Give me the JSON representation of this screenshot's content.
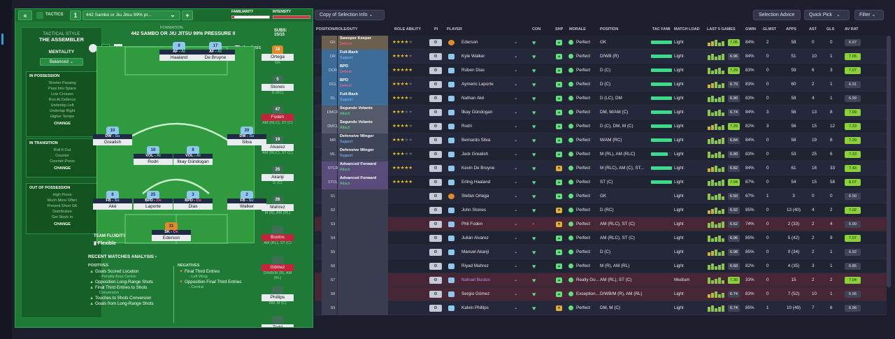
{
  "tactics": {
    "back": "«",
    "tactics_label": "TACTICS",
    "slot": "1",
    "name": "442 Sambo or Jiu Jitsu 99% pr...",
    "add": "+",
    "familiarity": "FAMILIARITY",
    "intensity": "INTENSITY",
    "style_label": "TACTICAL STYLE",
    "style": "THE ASSEMBLER",
    "mentality_label": "MENTALITY",
    "mentality": "Balanced",
    "in_possession": {
      "title": "IN POSSESSION",
      "items": [
        "Shorter Passing",
        "Pass Into Space",
        "Low Crosses",
        "Run At Defence",
        "Underlap Left",
        "Underlap Right",
        "Higher Tempo"
      ],
      "change": "CHANGE"
    },
    "in_transition": {
      "title": "IN TRANSITION",
      "items": [
        "Roll It Out",
        "Counter",
        "Counter-Press"
      ],
      "change": "CHANGE"
    },
    "out_of_possession": {
      "title": "OUT OF POSSESSION",
      "items": [
        "High Press",
        "Much More Often",
        "Prevent Short GK",
        "Distribution",
        "Get Stuck In"
      ],
      "change": "CHANGE"
    },
    "formation_label": "FORMATION",
    "formation_name": "442 SAMBO OR JIU JITSU 99% PRESSURE II",
    "analysis": "Analysis",
    "subs_label": "SUBS:",
    "subs_count": "15/15",
    "fluidity_label": "TEAM FLUIDITY",
    "fluidity": "Flexible"
  },
  "pitch_players": [
    {
      "num": "9",
      "role": "AF",
      "duty": "At",
      "name": "Haaland"
    },
    {
      "num": "17",
      "role": "AF",
      "duty": "At",
      "name": "De Bruyne"
    },
    {
      "num": "10",
      "role": "DW",
      "duty": "Su",
      "name": "Grealish"
    },
    {
      "num": "16",
      "role": "VOL",
      "duty": "At",
      "name": "Rodri"
    },
    {
      "num": "8",
      "role": "VOL",
      "duty": "At",
      "name": "İlkay Gündogan"
    },
    {
      "num": "20",
      "role": "DW",
      "duty": "Su",
      "name": "Silva"
    },
    {
      "num": "6",
      "role": "FB",
      "duty": "Su",
      "name": "Aké"
    },
    {
      "num": "25",
      "role": "BPD",
      "duty": "De",
      "name": "Laporte"
    },
    {
      "num": "3",
      "role": "BPD",
      "duty": "De",
      "name": "Dias"
    },
    {
      "num": "2",
      "role": "FB",
      "duty": "Su",
      "name": "Walker"
    },
    {
      "num": "31",
      "role": "SK",
      "duty": "De",
      "name": "Ederson"
    }
  ],
  "subs": [
    {
      "num": "18",
      "name": "Ortega",
      "pos": "GK"
    },
    {
      "num": "5",
      "name": "Stones",
      "pos": "D (RC)"
    },
    {
      "num": "47",
      "name": "Foden",
      "pos": "AM (RLC), ST (C)"
    },
    {
      "num": "19",
      "name": "Alvarez",
      "pos": "AM (RLC), ST (C)"
    },
    {
      "num": "25",
      "name": "Akanji",
      "pos": "D (C)"
    },
    {
      "num": "26",
      "name": "Mahrez",
      "pos": "M (R), AM (RL)"
    },
    {
      "num": "",
      "name": "Bustos",
      "pos": "AM (RL), ST (C)"
    },
    {
      "num": "",
      "name": "Gómez",
      "pos": "D/WB/M (R), AM (RL)"
    },
    {
      "num": "",
      "name": "Phillips",
      "pos": "DM, M (C)"
    },
    {
      "num": "",
      "name": "Tedd",
      "pos": ""
    }
  ],
  "recent": {
    "title": "RECENT MATCHES ANALYSIS",
    "positives_label": "POSITIVES",
    "negatives_label": "NEGATIVES",
    "positives": [
      "Goals Scored Location",
      "Opposition Long-Range Shots",
      "Final Third Entries to Shots",
      "Touches to Shots Conversion",
      "Goals from Long-Range Shots"
    ],
    "positive_subs": [
      "- Penalty Area Centre",
      "",
      "Conversion",
      "",
      ""
    ],
    "negatives": [
      "Final Third Entries",
      "Opposition Final Third Entries"
    ],
    "negative_subs": [
      "- Left Wing",
      "- Central"
    ]
  },
  "squad_toolbar": {
    "view": "Copy of Selection Info",
    "selection_advice": "Selection Advice",
    "quick_pick": "Quick Pick",
    "filter": "Filter"
  },
  "columns": {
    "pos": "POSITION/ROLE/DUTY",
    "rating": "ROLE ABILITY",
    "pi": "PI",
    "player": "PLAYER",
    "con": "CON",
    "shp": "SHP",
    "morale": "MORALE",
    "position": "POSITION",
    "tac": "TAC FAMI",
    "load": "MATCH LOAD",
    "last5": "LAST 5 GAMES",
    "gwin": "GWIN",
    "glmst": "GLMST",
    "apps": "APPS",
    "ast": "AST",
    "gls": "GLS",
    "avrat": "AV RAT"
  },
  "rows": [
    {
      "pos": "GK",
      "role": "Sweeper Keeper",
      "duty": "Defend",
      "stars": 4,
      "player": "Ederson",
      "morale": "Perfect",
      "position": "GK",
      "load": "Light",
      "rating": "7.05",
      "gwin": "84%",
      "glmst": "2",
      "apps": "58",
      "ast": "0",
      "gls": "0",
      "avrat": "6.97"
    },
    {
      "pos": "DR",
      "role": "Full-Back",
      "duty": "Support",
      "stars": 4,
      "player": "Kyle Walker",
      "morale": "Perfect",
      "position": "D/WB (R)",
      "load": "Light",
      "rating": "6.96",
      "gwin": "84%",
      "glmst": "0",
      "apps": "51",
      "ast": "10",
      "gls": "1",
      "avrat": "7.05"
    },
    {
      "pos": "DCR",
      "role": "BPD",
      "duty": "Defend",
      "stars": 4.5,
      "player": "Rúben Dias",
      "morale": "Perfect",
      "position": "D (C)",
      "load": "Light",
      "rating": "7.29",
      "gwin": "83%",
      "glmst": "0",
      "apps": "59",
      "ast": "6",
      "gls": "3",
      "avrat": "7.07"
    },
    {
      "pos": "DCL",
      "role": "BPD",
      "duty": "Defend",
      "stars": 4,
      "player": "Aymeric Laporte",
      "morale": "Perfect",
      "position": "D (C)",
      "load": "Light",
      "rating": "6.70",
      "gwin": "83%",
      "glmst": "0",
      "apps": "60",
      "ast": "2",
      "gls": "1",
      "avrat": "6.91"
    },
    {
      "pos": "DL",
      "role": "Full-Back",
      "duty": "Support",
      "stars": 4,
      "player": "Nathan Aké",
      "morale": "Perfect",
      "position": "D (LC), DM",
      "load": "Light",
      "rating": "6.90",
      "gwin": "83%",
      "glmst": "0",
      "apps": "58",
      "ast": "4",
      "gls": "1",
      "avrat": "6.99"
    },
    {
      "pos": "DMCR",
      "role": "Segundo Volante",
      "duty": "Attack",
      "stars": 3,
      "player": "İlkay Gündogan",
      "morale": "Perfect",
      "position": "DM, M/AM (C)",
      "load": "Light",
      "rating": "6.74",
      "gwin": "84%",
      "glmst": "3",
      "apps": "56",
      "ast": "13",
      "gls": "8",
      "avrat": "7.09"
    },
    {
      "pos": "DMCL",
      "role": "Segundo Volante",
      "duty": "Attack",
      "stars": 4,
      "player": "Rodri",
      "morale": "Perfect",
      "position": "D (C), DM, M (C)",
      "load": "Light",
      "rating": "7.29",
      "gwin": "82%",
      "glmst": "3",
      "apps": "56",
      "ast": "15",
      "gls": "12",
      "avrat": "7.23"
    },
    {
      "pos": "MR",
      "role": "Defensive Winger",
      "duty": "Support",
      "stars": 3,
      "player": "Bernardo Silva",
      "morale": "Perfect",
      "position": "M/AM (RC)",
      "load": "Light",
      "rating": "6.84",
      "gwin": "84%",
      "glmst": "0",
      "apps": "58",
      "ast": "19",
      "gls": "8",
      "avrat": "7.20"
    },
    {
      "pos": "ML",
      "role": "Defensive Winger",
      "duty": "Support",
      "stars": 2.5,
      "player": "Jack Grealish",
      "morale": "Perfect",
      "position": "M (RL), AM (RLC)",
      "load": "Light",
      "rating": "6.90",
      "gwin": "83%",
      "glmst": "0",
      "apps": "53",
      "ast": "25",
      "gls": "6",
      "avrat": "7.23"
    },
    {
      "pos": "STCR",
      "role": "Advanced Forward",
      "duty": "Attack",
      "stars": 4.5,
      "player": "Kevin De Bruyne",
      "morale": "Perfect",
      "position": "M (RLC), AM (C), ST...",
      "load": "Light",
      "rating": "6.82",
      "gwin": "84%",
      "glmst": "0",
      "apps": "61",
      "ast": "16",
      "gls": "33",
      "avrat": "7.43"
    },
    {
      "pos": "STCL",
      "role": "Advanced Forward",
      "duty": "Attack",
      "stars": 5,
      "player": "Erling Haaland",
      "morale": "Perfect",
      "position": "ST (C)",
      "load": "Light",
      "rating": "7.04",
      "gwin": "87%",
      "glmst": "0",
      "apps": "54",
      "ast": "15",
      "gls": "58",
      "avrat": "8.07"
    },
    {
      "pos": "S1",
      "role": "",
      "duty": "",
      "stars": 0,
      "player": "Stefan Ortega",
      "morale": "Perfect",
      "position": "GK",
      "load": "Light",
      "rating": "6.50",
      "gwin": "67%",
      "glmst": "1",
      "apps": "3",
      "ast": "0",
      "gls": "0",
      "avrat": "6.50"
    },
    {
      "pos": "S2",
      "role": "",
      "duty": "",
      "stars": 0,
      "player": "John Stones",
      "morale": "Perfect",
      "position": "D (RC)",
      "load": "Light",
      "rating": "6.92",
      "gwin": "85%",
      "glmst": "0",
      "apps": "13 (40)",
      "ast": "4",
      "gls": "2",
      "avrat": "7.02"
    },
    {
      "pos": "S3",
      "role": "",
      "duty": "",
      "stars": 0,
      "player": "Phil Foden",
      "morale": "Perfect",
      "position": "AM (RLC), ST (C)",
      "load": "Light",
      "rating": "6.62",
      "gwin": "74%",
      "glmst": "0",
      "apps": "2 (33)",
      "ast": "2",
      "gls": "4",
      "avrat": "6.90"
    },
    {
      "pos": "S4",
      "role": "",
      "duty": "",
      "stars": 0,
      "player": "Julián Alvarez",
      "morale": "Perfect",
      "position": "AM (RLC), ST (C)",
      "load": "Light",
      "rating": "6.96",
      "gwin": "85%",
      "glmst": "0",
      "apps": "5 (42)",
      "ast": "2",
      "gls": "9",
      "avrat": "7.07"
    },
    {
      "pos": "S5",
      "role": "",
      "duty": "",
      "stars": 0,
      "player": "Manuel Akanji",
      "morale": "Perfect",
      "position": "D (C)",
      "load": "Light",
      "rating": "6.98",
      "gwin": "85%",
      "glmst": "0",
      "apps": "0 (34)",
      "ast": "2",
      "gls": "1",
      "avrat": "6.92"
    },
    {
      "pos": "S6",
      "role": "",
      "duty": "",
      "stars": 0,
      "player": "Riyad Mahrez",
      "morale": "Perfect",
      "position": "M (R), AM (RL)",
      "load": "Light",
      "rating": "6.60",
      "gwin": "82%",
      "glmst": "0",
      "apps": "4 (35)",
      "ast": "3",
      "gls": "1",
      "avrat": "6.85"
    },
    {
      "pos": "S7",
      "role": "",
      "duty": "",
      "stars": 0,
      "player": "Nahuel Bustos",
      "morale": "Really Go...",
      "position": "AM (RL), ST (C)",
      "load": "Medium",
      "rating": "7.30",
      "gwin": "33%",
      "glmst": "0",
      "apps": "15",
      "ast": "2",
      "gls": "2",
      "avrat": "7.04"
    },
    {
      "pos": "S8",
      "role": "",
      "duty": "",
      "stars": 0,
      "player": "Sergio Gómez",
      "morale": "Exception...",
      "position": "D/WB/M (R), AM (RL)",
      "load": "Light",
      "rating": "6.74",
      "gwin": "83%",
      "glmst": "0",
      "apps": "7 (52)",
      "ast": "10",
      "gls": "1",
      "avrat": "6.95"
    },
    {
      "pos": "S9",
      "role": "",
      "duty": "",
      "stars": 0,
      "player": "Kalvin Phillips",
      "morale": "Perfect",
      "position": "DM, M (C)",
      "load": "Light",
      "rating": "6.74",
      "gwin": "85%",
      "glmst": "1",
      "apps": "10 (49)",
      "ast": "7",
      "gls": "6",
      "avrat": "6.96"
    }
  ]
}
